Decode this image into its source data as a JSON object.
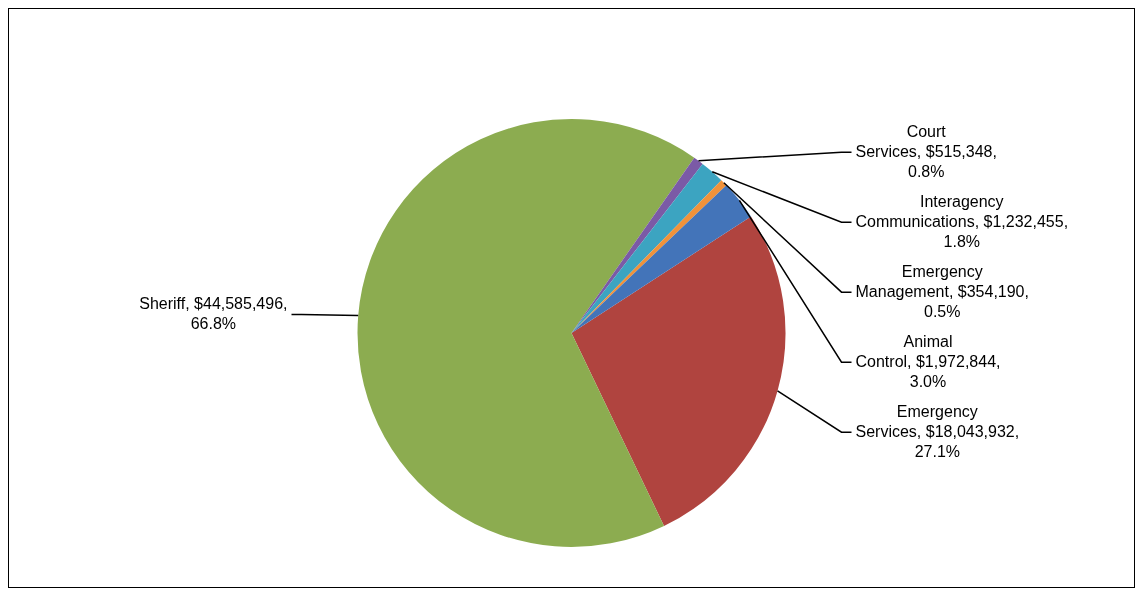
{
  "chart_data": {
    "type": "pie",
    "categories": [
      "Emergency Services",
      "Sheriff",
      "Court Services",
      "Interagency Communications",
      "Emergency Management",
      "Animal Control"
    ],
    "values": [
      18043932,
      44585496,
      515348,
      1232455,
      354190,
      1972844
    ],
    "value_labels": [
      "$18,043,932, 27.1%",
      "$44,585,496, 66.8%",
      "$515,348, 0.8%",
      "$1,232,455, 1.8%",
      "$354,190, 0.5%",
      "$1,972,844, 3.0%"
    ],
    "colors": [
      "#b0443f",
      "#8cac50",
      "#7b5aa6",
      "#3ca4c1",
      "#f0923a",
      "#4374b9"
    ],
    "legend": false
  }
}
